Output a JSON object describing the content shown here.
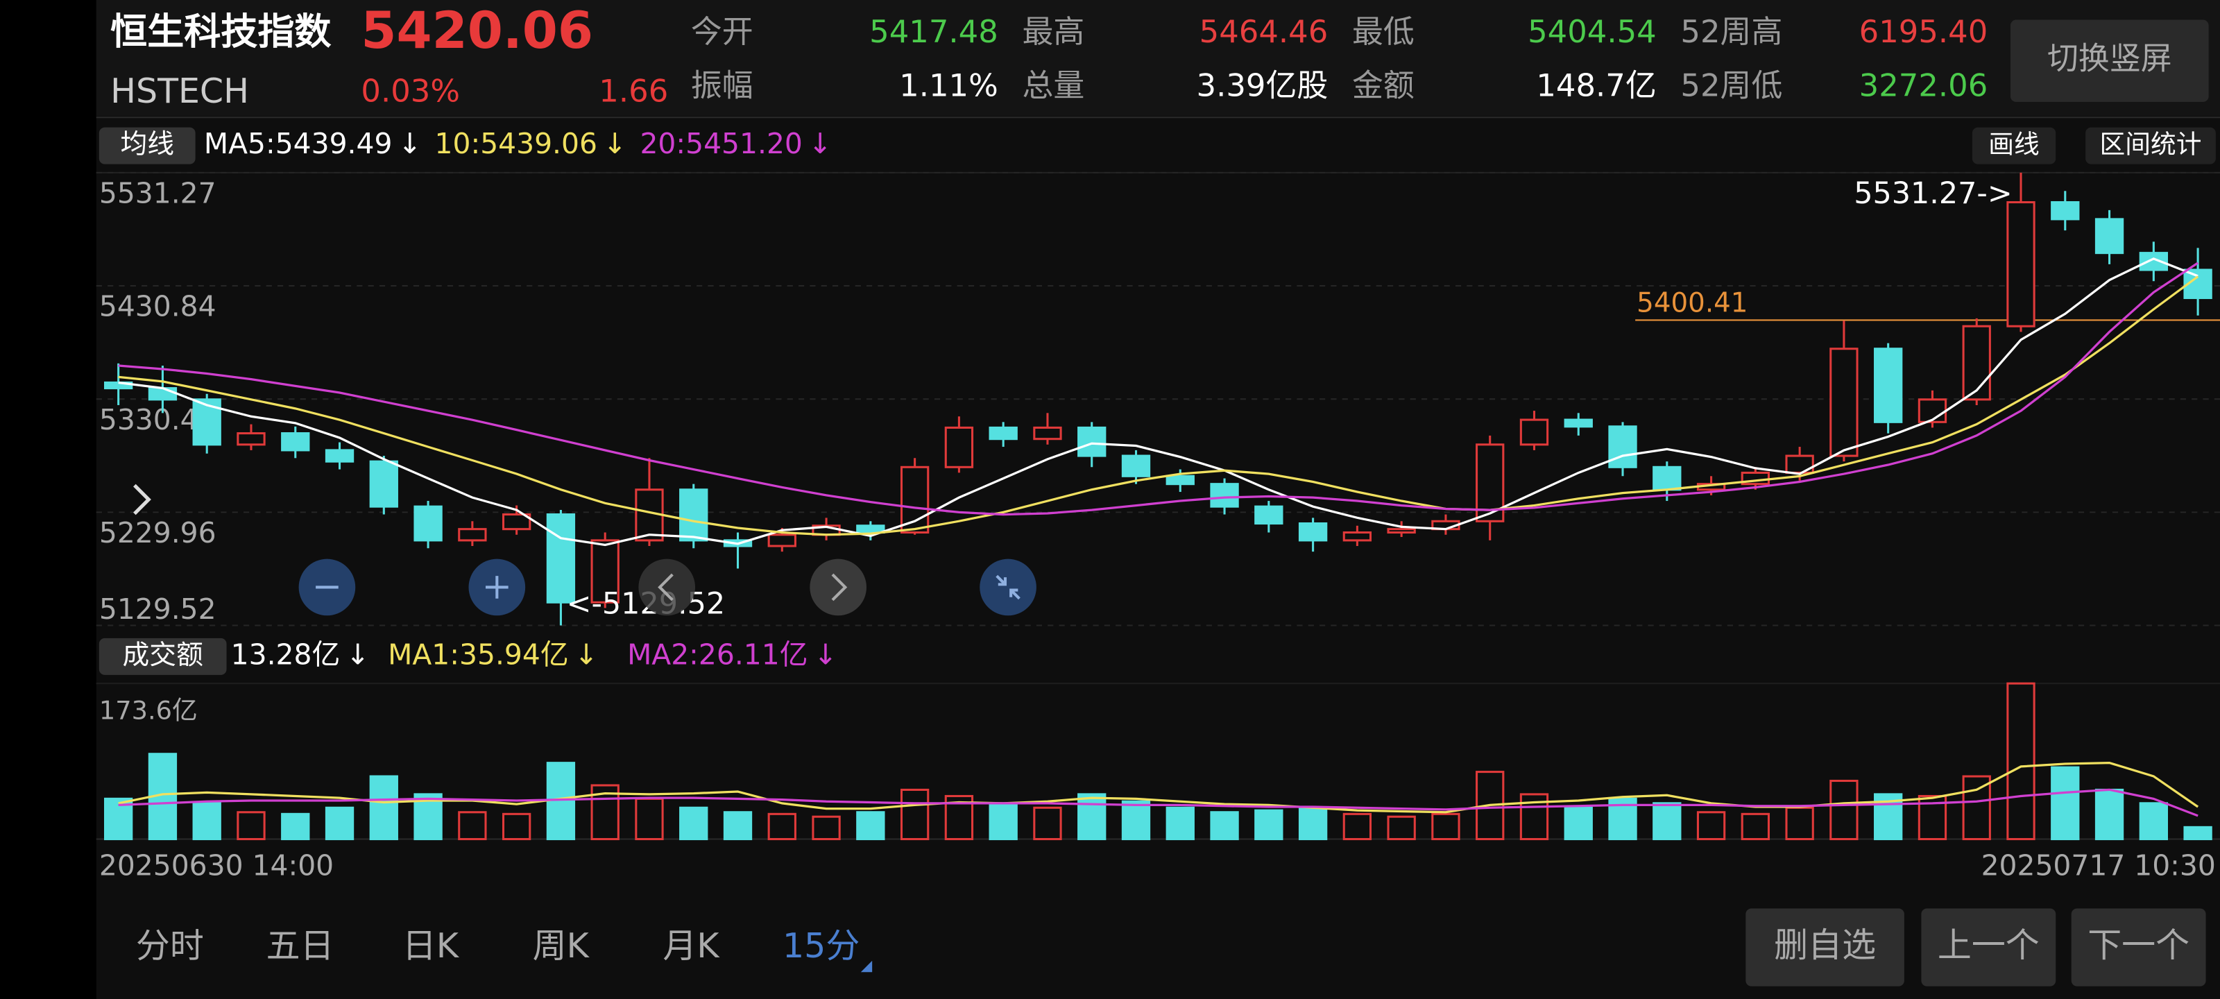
{
  "header": {
    "name": "恒生科技指数",
    "price": "5420.06",
    "code": "HSTECH",
    "change_pct": "0.03%",
    "change": "1.66",
    "stats": [
      {
        "label": "今开",
        "value": "5417.48",
        "color": "#4ccb4c"
      },
      {
        "label": "最高",
        "value": "5464.46",
        "color": "#e84040"
      },
      {
        "label": "最低",
        "value": "5404.54",
        "color": "#4ccb4c"
      },
      {
        "label": "52周高",
        "value": "6195.40",
        "color": "#e84040"
      },
      {
        "label": "振幅",
        "value": "1.11%",
        "color": "#ffffff"
      },
      {
        "label": "总量",
        "value": "3.39亿股",
        "color": "#ffffff"
      },
      {
        "label": "金额",
        "value": "148.7亿",
        "color": "#ffffff"
      },
      {
        "label": "52周低",
        "value": "3272.06",
        "color": "#4ccb4c"
      }
    ],
    "orientation_button": "切换竖屏"
  },
  "toolbar": {
    "ma_selector": "均线",
    "draw_button": "画线",
    "range_button": "区间统计",
    "volume_selector": "成交额"
  },
  "chart_data": {
    "type": "candlestick",
    "categories": [
      "20250630 14:00",
      null,
      null,
      null,
      null,
      null,
      null,
      null,
      null,
      null,
      null,
      null,
      null,
      null,
      null,
      null,
      null,
      null,
      null,
      null,
      null,
      null,
      null,
      null,
      null,
      null,
      null,
      null,
      null,
      null,
      null,
      null,
      null,
      null,
      null,
      null,
      null,
      null,
      null,
      null,
      null,
      null,
      null,
      null,
      null,
      null,
      null,
      "20250717 10:30"
    ],
    "ohlc": [
      [
        5345,
        5362,
        5325,
        5340
      ],
      [
        5340,
        5360,
        5318,
        5330
      ],
      [
        5330,
        5335,
        5282,
        5290
      ],
      [
        5290,
        5308,
        5285,
        5300
      ],
      [
        5300,
        5306,
        5278,
        5285
      ],
      [
        5285,
        5292,
        5268,
        5275
      ],
      [
        5275,
        5280,
        5228,
        5235
      ],
      [
        5235,
        5240,
        5198,
        5205
      ],
      [
        5205,
        5222,
        5200,
        5215
      ],
      [
        5215,
        5236,
        5210,
        5228
      ],
      [
        5228,
        5232,
        5129.52,
        5150
      ],
      [
        5150,
        5212,
        5145,
        5205
      ],
      [
        5205,
        5278,
        5200,
        5250
      ],
      [
        5250,
        5255,
        5198,
        5205
      ],
      [
        5205,
        5212,
        5180,
        5200
      ],
      [
        5200,
        5216,
        5195,
        5210
      ],
      [
        5210,
        5225,
        5205,
        5218
      ],
      [
        5218,
        5222,
        5205,
        5212
      ],
      [
        5212,
        5278,
        5210,
        5270
      ],
      [
        5270,
        5315,
        5265,
        5305
      ],
      [
        5305,
        5310,
        5288,
        5295
      ],
      [
        5295,
        5318,
        5290,
        5305
      ],
      [
        5305,
        5310,
        5270,
        5280
      ],
      [
        5280,
        5285,
        5255,
        5262
      ],
      [
        5262,
        5268,
        5248,
        5255
      ],
      [
        5255,
        5260,
        5228,
        5235
      ],
      [
        5235,
        5240,
        5212,
        5220
      ],
      [
        5220,
        5225,
        5195,
        5205
      ],
      [
        5205,
        5218,
        5200,
        5212
      ],
      [
        5212,
        5222,
        5208,
        5215
      ],
      [
        5215,
        5228,
        5210,
        5222
      ],
      [
        5222,
        5298,
        5205,
        5290
      ],
      [
        5290,
        5320,
        5285,
        5312
      ],
      [
        5312,
        5318,
        5298,
        5306
      ],
      [
        5306,
        5310,
        5262,
        5270
      ],
      [
        5270,
        5275,
        5240,
        5250
      ],
      [
        5250,
        5262,
        5245,
        5255
      ],
      [
        5255,
        5270,
        5250,
        5265
      ],
      [
        5265,
        5288,
        5258,
        5280
      ],
      [
        5280,
        5400,
        5275,
        5375
      ],
      [
        5375,
        5380,
        5300,
        5310
      ],
      [
        5310,
        5338,
        5305,
        5330
      ],
      [
        5330,
        5402,
        5325,
        5395
      ],
      [
        5395,
        5531.27,
        5390,
        5505
      ],
      [
        5505,
        5515,
        5480,
        5490
      ],
      [
        5490,
        5498,
        5450,
        5460
      ],
      [
        5460,
        5470,
        5435,
        5445
      ],
      [
        5445,
        5464.46,
        5404.54,
        5420.06
      ]
    ],
    "up_color": "#e03a3a",
    "down_color": "#55e0e0",
    "ylim": [
      5129.52,
      5531.27
    ],
    "yticks": [
      5531.27,
      5430.84,
      {
        "value": 5330.4,
        "label": "5330.40"
      },
      5229.96,
      5129.52
    ],
    "grid": true,
    "ma_lines": [
      {
        "name": "MA5:5439.49",
        "color": "#ffffff",
        "trend": "↓",
        "values": [
          5345,
          5340,
          5325,
          5315,
          5309,
          5296,
          5277,
          5260,
          5243,
          5232,
          5207,
          5201,
          5210,
          5208,
          5202,
          5214,
          5217,
          5209,
          5222,
          5243,
          5260,
          5277,
          5291,
          5289,
          5279,
          5267,
          5250,
          5235,
          5225,
          5217,
          5215,
          5229,
          5247,
          5265,
          5280,
          5286,
          5279,
          5269,
          5264,
          5285,
          5297,
          5312,
          5338,
          5383,
          5406,
          5436,
          5455,
          5439.49
        ]
      },
      {
        "name": "10:5439.06",
        "color": "#f0e060",
        "trend": "↓",
        "values": [
          5350,
          5346,
          5338,
          5330,
          5322,
          5312,
          5300,
          5288,
          5276,
          5264,
          5250,
          5238,
          5230,
          5222,
          5216,
          5212,
          5210,
          5211,
          5215,
          5222,
          5230,
          5240,
          5250,
          5258,
          5264,
          5267,
          5264,
          5257,
          5248,
          5240,
          5233,
          5232,
          5236,
          5242,
          5247,
          5250,
          5254,
          5258,
          5262,
          5272,
          5282,
          5292,
          5308,
          5330,
          5352,
          5380,
          5410,
          5439.06
        ]
      },
      {
        "name": "20:5451.20",
        "color": "#d040d0",
        "trend": "↓",
        "values": [
          5360,
          5357,
          5353,
          5348,
          5342,
          5336,
          5328,
          5320,
          5312,
          5303,
          5294,
          5285,
          5276,
          5268,
          5260,
          5252,
          5245,
          5239,
          5234,
          5230,
          5228,
          5229,
          5232,
          5236,
          5240,
          5243,
          5244,
          5243,
          5240,
          5236,
          5233,
          5232,
          5234,
          5238,
          5242,
          5245,
          5248,
          5252,
          5257,
          5264,
          5272,
          5282,
          5298,
          5320,
          5350,
          5390,
          5425,
          5451.2
        ]
      }
    ],
    "max_label": {
      "value": 5531.27,
      "label": "5531.27->"
    },
    "min_label": {
      "value": 5129.52,
      "label": "<-5129.52"
    },
    "ref_line": {
      "value": 5400.41,
      "color": "#e8923a"
    },
    "volume": {
      "values": [
        45,
        95,
        40,
        30,
        28,
        35,
        70,
        50,
        30,
        28,
        85,
        60,
        45,
        35,
        30,
        28,
        25,
        30,
        55,
        48,
        40,
        35,
        50,
        42,
        35,
        30,
        32,
        35,
        28,
        25,
        28,
        75,
        50,
        35,
        45,
        40,
        30,
        28,
        35,
        65,
        50,
        48,
        70,
        173.6,
        80,
        55,
        40,
        13.28
      ],
      "ylim": [
        0,
        173.6
      ],
      "yticks": [
        {
          "value": 173.6,
          "label": "173.6亿"
        }
      ],
      "latest": "13.28亿",
      "latest_trend": "↓",
      "ma_lines": [
        {
          "name": "MA1:35.94亿",
          "color": "#f0e060",
          "trend": "↓",
          "values": [
            40,
            50,
            52,
            50,
            48,
            46,
            41,
            43,
            43,
            39,
            45,
            51,
            50,
            51,
            53,
            40,
            34,
            34,
            38,
            41,
            40,
            42,
            46,
            45,
            42,
            39,
            38,
            35,
            32,
            31,
            30,
            38,
            41,
            43,
            47,
            49,
            40,
            36,
            36,
            40,
            42,
            46,
            55,
            81,
            84,
            85,
            70,
            35.94
          ]
        },
        {
          "name": "MA2:26.11亿",
          "color": "#d040d0",
          "trend": "↓",
          "values": [
            38,
            40,
            42,
            43,
            43,
            43,
            44,
            45,
            44,
            43,
            44,
            45,
            46,
            46,
            45,
            44,
            42,
            41,
            40,
            40,
            40,
            40,
            39,
            38,
            38,
            37,
            36,
            36,
            35,
            34,
            33,
            35,
            36,
            37,
            38,
            38,
            38,
            37,
            37,
            38,
            39,
            40,
            42,
            48,
            52,
            55,
            45,
            26.11
          ]
        }
      ]
    }
  },
  "tabs": [
    "分时",
    "五日",
    "日K",
    "周K",
    "月K",
    "15分"
  ],
  "active_tab": 5,
  "actions": [
    "删自选",
    "上一个",
    "下一个"
  ]
}
